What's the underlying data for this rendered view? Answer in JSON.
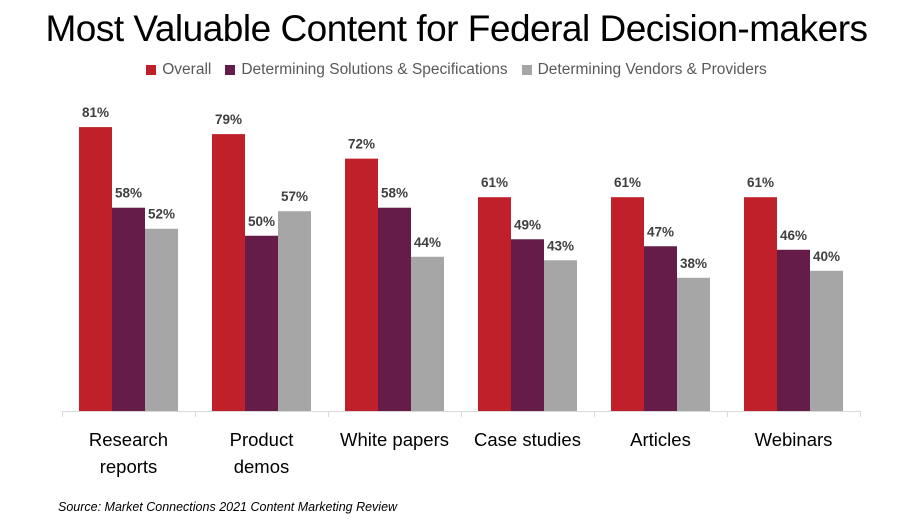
{
  "chart_data": {
    "type": "bar",
    "title": "Most Valuable Content for Federal Decision-makers",
    "categories": [
      [
        "Research",
        "reports"
      ],
      [
        "Product",
        "demos"
      ],
      [
        "White papers"
      ],
      [
        "Case studies"
      ],
      [
        "Articles"
      ],
      [
        "Webinars"
      ]
    ],
    "series": [
      {
        "name": "Overall",
        "color": "#c0202a",
        "values": [
          81,
          79,
          72,
          61,
          61,
          61
        ]
      },
      {
        "name": "Determining Solutions & Specifications",
        "color": "#651c48",
        "values": [
          58,
          50,
          58,
          49,
          47,
          46
        ]
      },
      {
        "name": "Determining Vendors & Providers",
        "color": "#a6a6a6",
        "values": [
          52,
          57,
          44,
          43,
          38,
          40
        ]
      }
    ],
    "value_suffix": "%",
    "ylim": [
      0,
      100
    ],
    "grid": false,
    "legend_position": "top"
  },
  "source": "Source: Market Connections 2021 Content Marketing Review"
}
